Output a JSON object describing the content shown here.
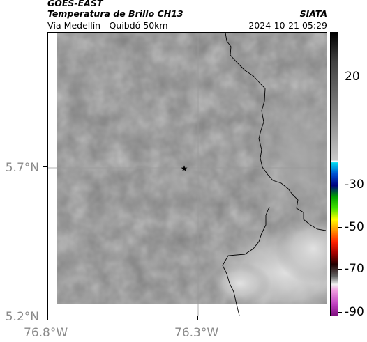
{
  "header": {
    "satellite": "GOES-EAST",
    "product": "Temperatura de Brillo CH13",
    "region": "Vía Medellín - Quibdó 50km",
    "source": "SIATA",
    "datetime": "2024-10-21 05:29"
  },
  "axes": {
    "lat_ticks": [
      "5.7°N",
      "5.2°N"
    ],
    "lon_ticks": [
      "76.8°W",
      "76.3°W"
    ]
  },
  "colorbar": {
    "labels": [
      "20",
      "-30",
      "-50",
      "-70",
      "-90"
    ]
  },
  "marker": {
    "symbol": "★"
  },
  "colors": {
    "cloud_dark": "#7d7d7d",
    "cloud_light": "#dedede",
    "border": "#000000",
    "tick_label": "#8a8a8a"
  }
}
